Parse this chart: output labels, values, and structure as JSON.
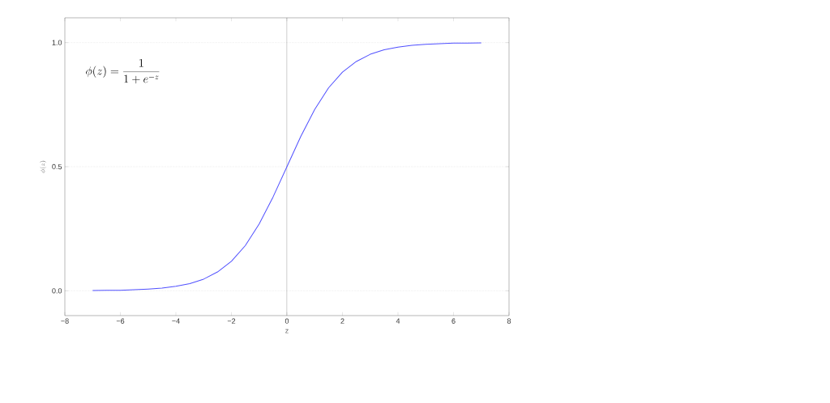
{
  "chart_data": {
    "type": "line",
    "xlabel": "z",
    "ylabel": "\\phi(z)",
    "annotations": [
      "\\phi(z) = \\frac{1}{1+e^{-z}}"
    ],
    "x": [
      -7,
      -6.5,
      -6,
      -5.5,
      -5,
      -4.5,
      -4,
      -3.5,
      -3,
      -2.5,
      -2,
      -1.5,
      -1,
      -0.5,
      0,
      0.5,
      1,
      1.5,
      2,
      2.5,
      3,
      3.5,
      4,
      4.5,
      5,
      5.5,
      6,
      6.5,
      7
    ],
    "series": [
      {
        "color": "#5050ff",
        "values": [
          0.001,
          0.002,
          0.002,
          0.004,
          0.007,
          0.011,
          0.018,
          0.029,
          0.047,
          0.076,
          0.119,
          0.182,
          0.269,
          0.378,
          0.5,
          0.622,
          0.731,
          0.818,
          0.881,
          0.924,
          0.953,
          0.971,
          0.982,
          0.989,
          0.993,
          0.996,
          0.998,
          0.998,
          0.999
        ]
      }
    ],
    "xlim": [
      -8,
      8
    ],
    "ylim": [
      -0.1,
      1.1
    ],
    "xticks": [
      {
        "value": -8,
        "label": "−8"
      },
      {
        "value": -6,
        "label": "−6"
      },
      {
        "value": -4,
        "label": "−4"
      },
      {
        "value": -2,
        "label": "−2"
      },
      0,
      2,
      4,
      6,
      8
    ],
    "yticks": [
      {
        "value": 0,
        "label": "0.0"
      },
      {
        "value": 0.5,
        "label": "0.5"
      },
      {
        "value": 1,
        "label": "1.0"
      }
    ],
    "grid": "y",
    "ref_lines": [
      {
        "axis": "x",
        "value": 0,
        "color": "#000000"
      }
    ]
  }
}
